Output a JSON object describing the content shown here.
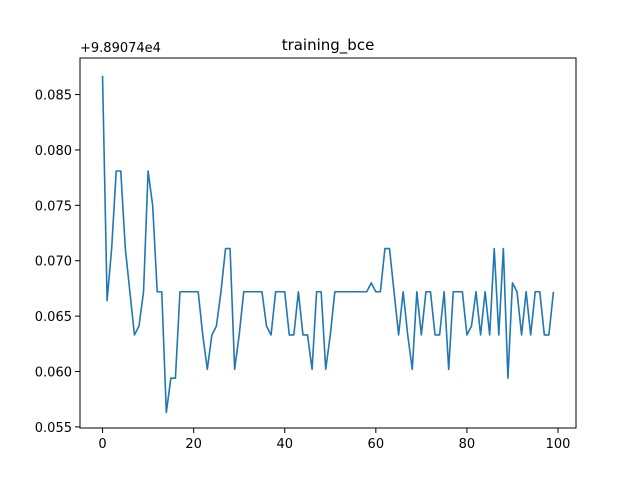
{
  "chart_data": {
    "type": "line",
    "title": "training_bce",
    "xlabel": "",
    "ylabel": "",
    "y_offset_label": "+9.89074e4",
    "xlim": [
      -4.95,
      103.95
    ],
    "ylim": [
      0.0549,
      0.0883
    ],
    "x_ticks": [
      0,
      20,
      40,
      60,
      80,
      100
    ],
    "x_tick_labels": [
      "0",
      "20",
      "40",
      "60",
      "80",
      "100"
    ],
    "y_ticks": [
      0.055,
      0.06,
      0.065,
      0.07,
      0.075,
      0.08,
      0.085
    ],
    "y_tick_labels": [
      "0.055",
      "0.060",
      "0.065",
      "0.070",
      "0.075",
      "0.080",
      "0.085"
    ],
    "grid": false,
    "series": [
      {
        "color": "#1f77b4",
        "x": [
          0,
          1,
          2,
          3,
          4,
          5,
          6,
          7,
          8,
          9,
          10,
          11,
          12,
          13,
          14,
          15,
          16,
          17,
          18,
          19,
          20,
          21,
          22,
          23,
          24,
          25,
          26,
          27,
          28,
          29,
          30,
          31,
          32,
          33,
          34,
          35,
          36,
          37,
          38,
          39,
          40,
          41,
          42,
          43,
          44,
          45,
          46,
          47,
          48,
          49,
          50,
          51,
          52,
          53,
          54,
          55,
          56,
          57,
          58,
          59,
          60,
          61,
          62,
          63,
          64,
          65,
          66,
          67,
          68,
          69,
          70,
          71,
          72,
          73,
          74,
          75,
          76,
          77,
          78,
          79,
          80,
          81,
          82,
          83,
          84,
          85,
          86,
          87,
          88,
          89,
          90,
          91,
          92,
          93,
          94,
          95,
          96,
          97,
          98,
          99
        ],
        "values": [
          0.0867,
          0.0664,
          0.0711,
          0.0781,
          0.0781,
          0.0711,
          0.0672,
          0.0633,
          0.0641,
          0.0672,
          0.0781,
          0.075,
          0.0672,
          0.0672,
          0.0563,
          0.0594,
          0.0594,
          0.0672,
          0.0672,
          0.0672,
          0.0672,
          0.0672,
          0.0633,
          0.0602,
          0.0633,
          0.0641,
          0.0672,
          0.0711,
          0.0711,
          0.0602,
          0.0633,
          0.0672,
          0.0672,
          0.0672,
          0.0672,
          0.0672,
          0.0641,
          0.0633,
          0.0672,
          0.0672,
          0.0672,
          0.0633,
          0.0633,
          0.0672,
          0.0633,
          0.0633,
          0.0602,
          0.0672,
          0.0672,
          0.0602,
          0.0633,
          0.0672,
          0.0672,
          0.0672,
          0.0672,
          0.0672,
          0.0672,
          0.0672,
          0.0672,
          0.068,
          0.0672,
          0.0672,
          0.0711,
          0.0711,
          0.0672,
          0.0633,
          0.0672,
          0.0633,
          0.0602,
          0.0672,
          0.0633,
          0.0672,
          0.0672,
          0.0633,
          0.0633,
          0.0672,
          0.0602,
          0.0672,
          0.0672,
          0.0672,
          0.0633,
          0.0641,
          0.0672,
          0.0633,
          0.0672,
          0.0633,
          0.0711,
          0.0633,
          0.0711,
          0.0594,
          0.068,
          0.0672,
          0.0633,
          0.0672,
          0.0633,
          0.0672,
          0.0672,
          0.0633,
          0.0633,
          0.0672
        ]
      }
    ]
  }
}
